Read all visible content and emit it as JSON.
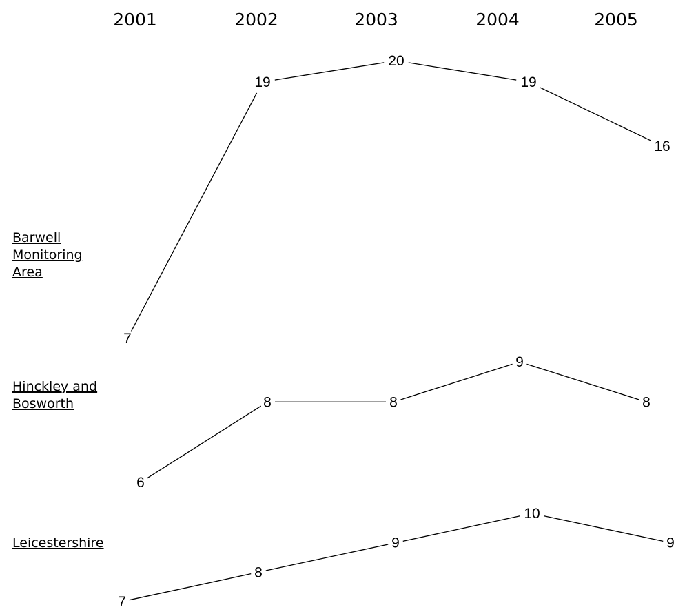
{
  "chart_data": {
    "type": "line",
    "categories": [
      "2001",
      "2002",
      "2003",
      "2004",
      "2005"
    ],
    "series": [
      {
        "name_lines": [
          "Barwell",
          "Monitoring",
          "Area"
        ],
        "values": [
          7,
          19,
          20,
          19,
          16
        ],
        "value_labels": [
          "7",
          "19",
          "20",
          "19",
          "16"
        ]
      },
      {
        "name_lines": [
          "Hinckley and",
          "Bosworth"
        ],
        "values": [
          6,
          8,
          8,
          9,
          8
        ],
        "value_labels": [
          "6",
          "8",
          "8",
          "9",
          "8"
        ]
      },
      {
        "name_lines": [
          "Leicestershire"
        ],
        "values": [
          7,
          8,
          9,
          10,
          9
        ],
        "value_labels": [
          "7",
          "8",
          "9",
          "10",
          "9"
        ]
      }
    ],
    "grid": false,
    "axes_visible": false,
    "line_color": "#000000"
  }
}
